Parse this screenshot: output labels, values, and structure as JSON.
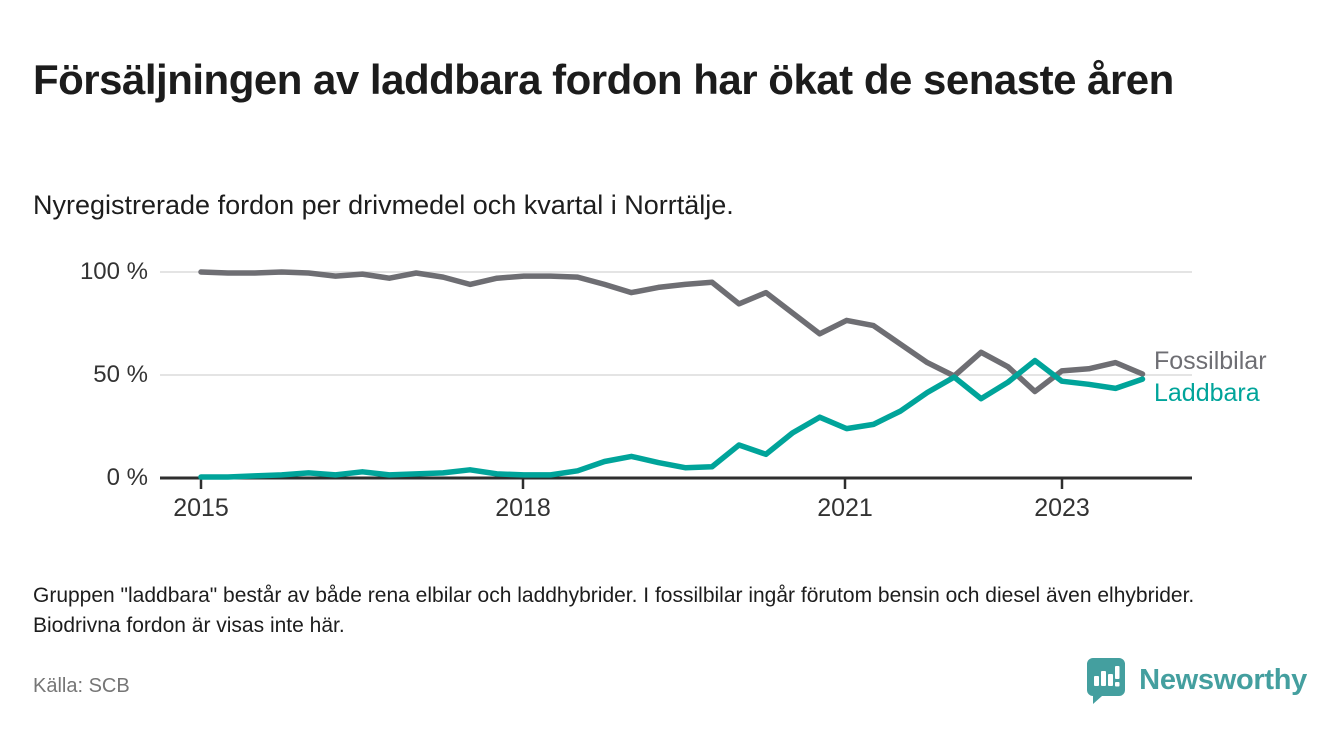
{
  "header": {
    "title": "Försäljningen av laddbara fordon har ökat de senaste åren",
    "subtitle": "Nyregistrerade fordon per drivmedel och kvartal i Norrtälje."
  },
  "chart_data": {
    "type": "line",
    "x": [
      "2015 Q1",
      "2015 Q2",
      "2015 Q3",
      "2015 Q4",
      "2016 Q1",
      "2016 Q2",
      "2016 Q3",
      "2016 Q4",
      "2017 Q1",
      "2017 Q2",
      "2017 Q3",
      "2017 Q4",
      "2018 Q1",
      "2018 Q2",
      "2018 Q3",
      "2018 Q4",
      "2019 Q1",
      "2019 Q2",
      "2019 Q3",
      "2019 Q4",
      "2020 Q1",
      "2020 Q2",
      "2020 Q3",
      "2020 Q4",
      "2021 Q1",
      "2021 Q2",
      "2021 Q3",
      "2021 Q4",
      "2022 Q1",
      "2022 Q2",
      "2022 Q3",
      "2022 Q4",
      "2023 Q1",
      "2023 Q2",
      "2023 Q3",
      "2023 Q4"
    ],
    "series": [
      {
        "name": "Fossilbilar",
        "color": "#6e6e73",
        "values": [
          100,
          99.5,
          99.5,
          100,
          99.5,
          98,
          99,
          97,
          99.5,
          97.5,
          94,
          97,
          98,
          98,
          97.5,
          94,
          90,
          92.5,
          94,
          95,
          84.5,
          90,
          80,
          70,
          76.5,
          74,
          65,
          56,
          49.5,
          61,
          54,
          42,
          52,
          53,
          56,
          50.5
        ]
      },
      {
        "name": "Laddbara",
        "color": "#00a49a",
        "values": [
          0.5,
          0.5,
          1,
          1.5,
          2.5,
          1.5,
          3,
          1.5,
          2,
          2.5,
          4,
          2,
          1.5,
          1.5,
          3.5,
          8,
          10.5,
          7.5,
          5,
          5.5,
          16,
          11.5,
          22,
          29.5,
          24,
          26,
          32.5,
          41.5,
          49,
          38.5,
          46.5,
          57,
          47,
          45.5,
          43.5,
          48
        ]
      }
    ],
    "ylim": [
      0,
      100
    ],
    "y_tick_labels": [
      "100 %",
      "50 %",
      "0 %"
    ],
    "x_tick_labels": [
      "2015",
      "2018",
      "2021",
      "2023"
    ],
    "grid": "horizontal gridlines at 50% and 100%",
    "legend_position": "right end-of-line labels"
  },
  "footnote": "Gruppen \"laddbara\" består av både rena elbilar och laddhybrider. I fossilbilar ingår förutom bensin och diesel även elhybrider. Biodrivna fordon är visas inte här.",
  "source": "Källa: SCB",
  "branding": {
    "logo_text": "Newsworthy",
    "logo_color": "#449f9f",
    "logo_icon": "bar-chart-speech-bubble"
  }
}
